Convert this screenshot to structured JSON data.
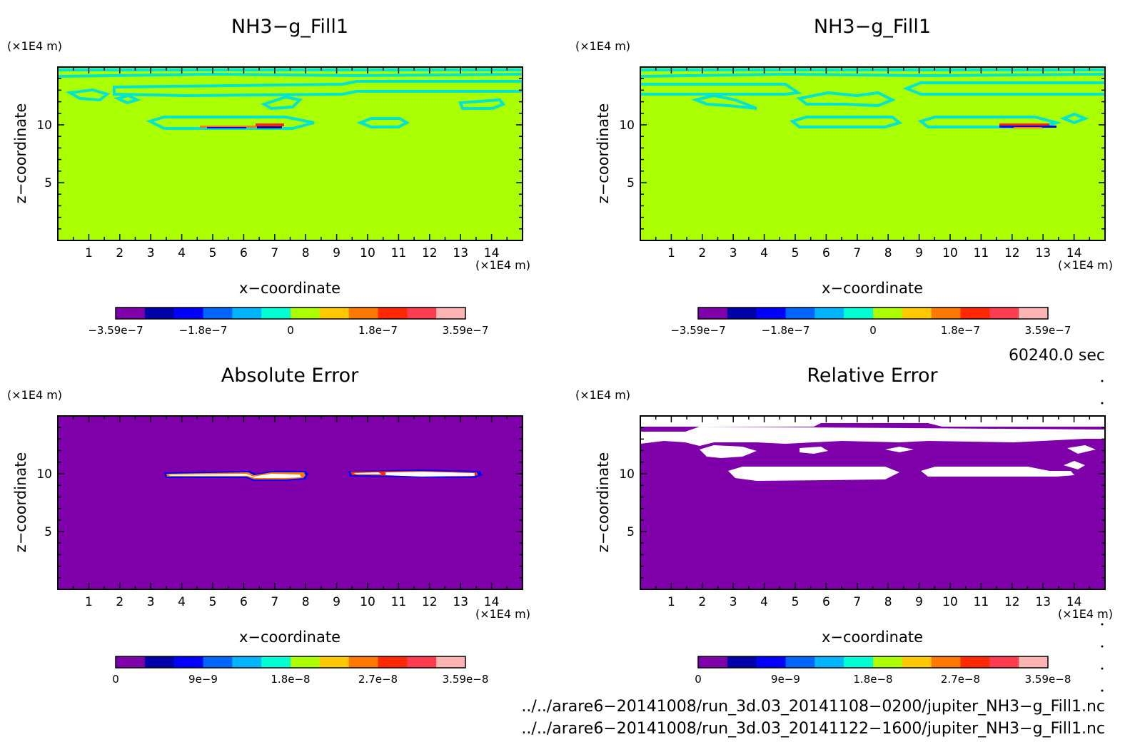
{
  "colors": {
    "background_field": "#aaff00",
    "contour_line": "#00e5d0",
    "error_background": "#7f00aa",
    "relative_error_patch": "#ffffff",
    "palette": [
      "#7f00aa",
      "#0000aa",
      "#0000ff",
      "#0064ff",
      "#00b4ff",
      "#00ffd2",
      "#aaff00",
      "#ffc800",
      "#ff7800",
      "#ff2800",
      "#ff3c50",
      "#ffb4b4"
    ]
  },
  "panels": [
    {
      "id": "top-left",
      "title": "NH3−g_Fill1",
      "xlabel": "x−coordinate",
      "ylabel": "z−coordinate",
      "xunit": "(×1E4 m)",
      "yunit": "(×1E4 m)",
      "xticks": [
        "1",
        "2",
        "3",
        "4",
        "5",
        "6",
        "7",
        "8",
        "9",
        "10",
        "11",
        "12",
        "13",
        "14"
      ],
      "yticks": [
        "5",
        "10"
      ],
      "colorbar_labels": [
        "−3.59e−7",
        "−1.8e−7",
        "0",
        "1.8e−7",
        "3.59e−7"
      ]
    },
    {
      "id": "top-right",
      "title": "NH3−g_Fill1",
      "xlabel": "x−coordinate",
      "ylabel": "z−coordinate",
      "xunit": "(×1E4 m)",
      "yunit": "(×1E4 m)",
      "xticks": [
        "1",
        "2",
        "3",
        "4",
        "5",
        "6",
        "7",
        "8",
        "9",
        "10",
        "11",
        "12",
        "13",
        "14"
      ],
      "yticks": [
        "5",
        "10"
      ],
      "colorbar_labels": [
        "−3.59e−7",
        "−1.8e−7",
        "0",
        "1.8e−7",
        "3.59e−7"
      ]
    },
    {
      "id": "bottom-left",
      "title": "Absolute Error",
      "xlabel": "x−coordinate",
      "ylabel": "z−coordinate",
      "xunit": "(×1E4 m)",
      "yunit": "(×1E4 m)",
      "xticks": [
        "1",
        "2",
        "3",
        "4",
        "5",
        "6",
        "7",
        "8",
        "9",
        "10",
        "11",
        "12",
        "13",
        "14"
      ],
      "yticks": [
        "5",
        "10"
      ],
      "colorbar_labels": [
        "0",
        "9e−9",
        "1.8e−8",
        "2.7e−8",
        "3.59e−8"
      ]
    },
    {
      "id": "bottom-right",
      "title": "Relative Error",
      "xlabel": "x−coordinate",
      "ylabel": "z−coordinate",
      "xunit": "(×1E4 m)",
      "yunit": "(×1E4 m)",
      "xticks": [
        "1",
        "2",
        "3",
        "4",
        "5",
        "6",
        "7",
        "8",
        "9",
        "10",
        "11",
        "12",
        "13",
        "14"
      ],
      "yticks": [
        "5",
        "10"
      ],
      "colorbar_labels": [
        "0",
        "9e−9",
        "1.8e−8",
        "2.7e−8",
        "3.59e−8"
      ]
    }
  ],
  "time_label": "60240.0 sec",
  "footer": {
    "file1": "../../arare6−20141008/run_3d.03_20141108−0200/jupiter_NH3−g_Fill1.nc",
    "file2": "../../arare6−20141008/run_3d.03_20141122−1600/jupiter_NH3−g_Fill1.nc"
  },
  "chart_data": [
    {
      "type": "heatmap",
      "title": "NH3−g_Fill1",
      "xlabel": "x−coordinate (×1E4 m)",
      "ylabel": "z−coordinate (×1E4 m)",
      "xlim": [
        0,
        15
      ],
      "ylim": [
        0,
        15
      ],
      "colorbar_range": [
        -3.59e-07,
        3.59e-07
      ],
      "background_value": 0,
      "features": [
        {
          "kind": "contour_band",
          "x": [
            0,
            15
          ],
          "z": [
            14.5,
            14.5
          ]
        },
        {
          "kind": "contour_band",
          "x": [
            2,
            15
          ],
          "z": [
            13.2,
            13.2
          ]
        },
        {
          "kind": "contour_blob",
          "x": [
            5,
            8
          ],
          "z": [
            10,
            10
          ]
        },
        {
          "kind": "contour_blob",
          "x": [
            10,
            11.5
          ],
          "z": [
            10,
            10
          ]
        },
        {
          "kind": "extreme",
          "x": [
            6.5,
            7.5
          ],
          "z": [
            9.5,
            9.8
          ]
        }
      ]
    },
    {
      "type": "heatmap",
      "title": "NH3−g_Fill1",
      "xlabel": "x−coordinate (×1E4 m)",
      "ylabel": "z−coordinate (×1E4 m)",
      "xlim": [
        0,
        15
      ],
      "ylim": [
        0,
        15
      ],
      "colorbar_range": [
        -3.59e-07,
        3.59e-07
      ],
      "background_value": 0,
      "features": [
        {
          "kind": "contour_band",
          "x": [
            0,
            15
          ],
          "z": [
            14.5,
            14.5
          ]
        },
        {
          "kind": "contour_band",
          "x": [
            0,
            15
          ],
          "z": [
            13.2,
            13.2
          ]
        },
        {
          "kind": "contour_blob",
          "x": [
            5,
            8
          ],
          "z": [
            10,
            10
          ]
        },
        {
          "kind": "contour_blob",
          "x": [
            9,
            13
          ],
          "z": [
            10,
            10
          ]
        },
        {
          "kind": "extreme",
          "x": [
            11.5,
            13
          ],
          "z": [
            9.5,
            9.8
          ]
        }
      ]
    },
    {
      "type": "heatmap",
      "title": "Absolute Error",
      "xlabel": "x−coordinate (×1E4 m)",
      "ylabel": "z−coordinate (×1E4 m)",
      "xlim": [
        0,
        15
      ],
      "ylim": [
        0,
        15
      ],
      "colorbar_range": [
        0,
        3.59e-08
      ],
      "background_value": 0,
      "features": [
        {
          "kind": "saturated",
          "x": [
            3.5,
            8
          ],
          "z": [
            9.6,
            10.2
          ]
        },
        {
          "kind": "saturated",
          "x": [
            9.5,
            13.5
          ],
          "z": [
            9.8,
            10.2
          ]
        }
      ]
    },
    {
      "type": "heatmap",
      "title": "Relative Error",
      "xlabel": "x−coordinate (×1E4 m)",
      "ylabel": "z−coordinate (×1E4 m)",
      "xlim": [
        0,
        15
      ],
      "ylim": [
        0,
        15
      ],
      "colorbar_range": [
        0,
        3.59e-08
      ],
      "background_value": 0,
      "features": [
        {
          "kind": "saturated",
          "x": [
            0,
            15
          ],
          "z": [
            14.4,
            14.8
          ]
        },
        {
          "kind": "saturated",
          "x": [
            0,
            15
          ],
          "z": [
            12.5,
            13.7
          ]
        },
        {
          "kind": "saturated",
          "x": [
            3,
            14.5
          ],
          "z": [
            9.8,
            10.8
          ]
        }
      ]
    }
  ]
}
